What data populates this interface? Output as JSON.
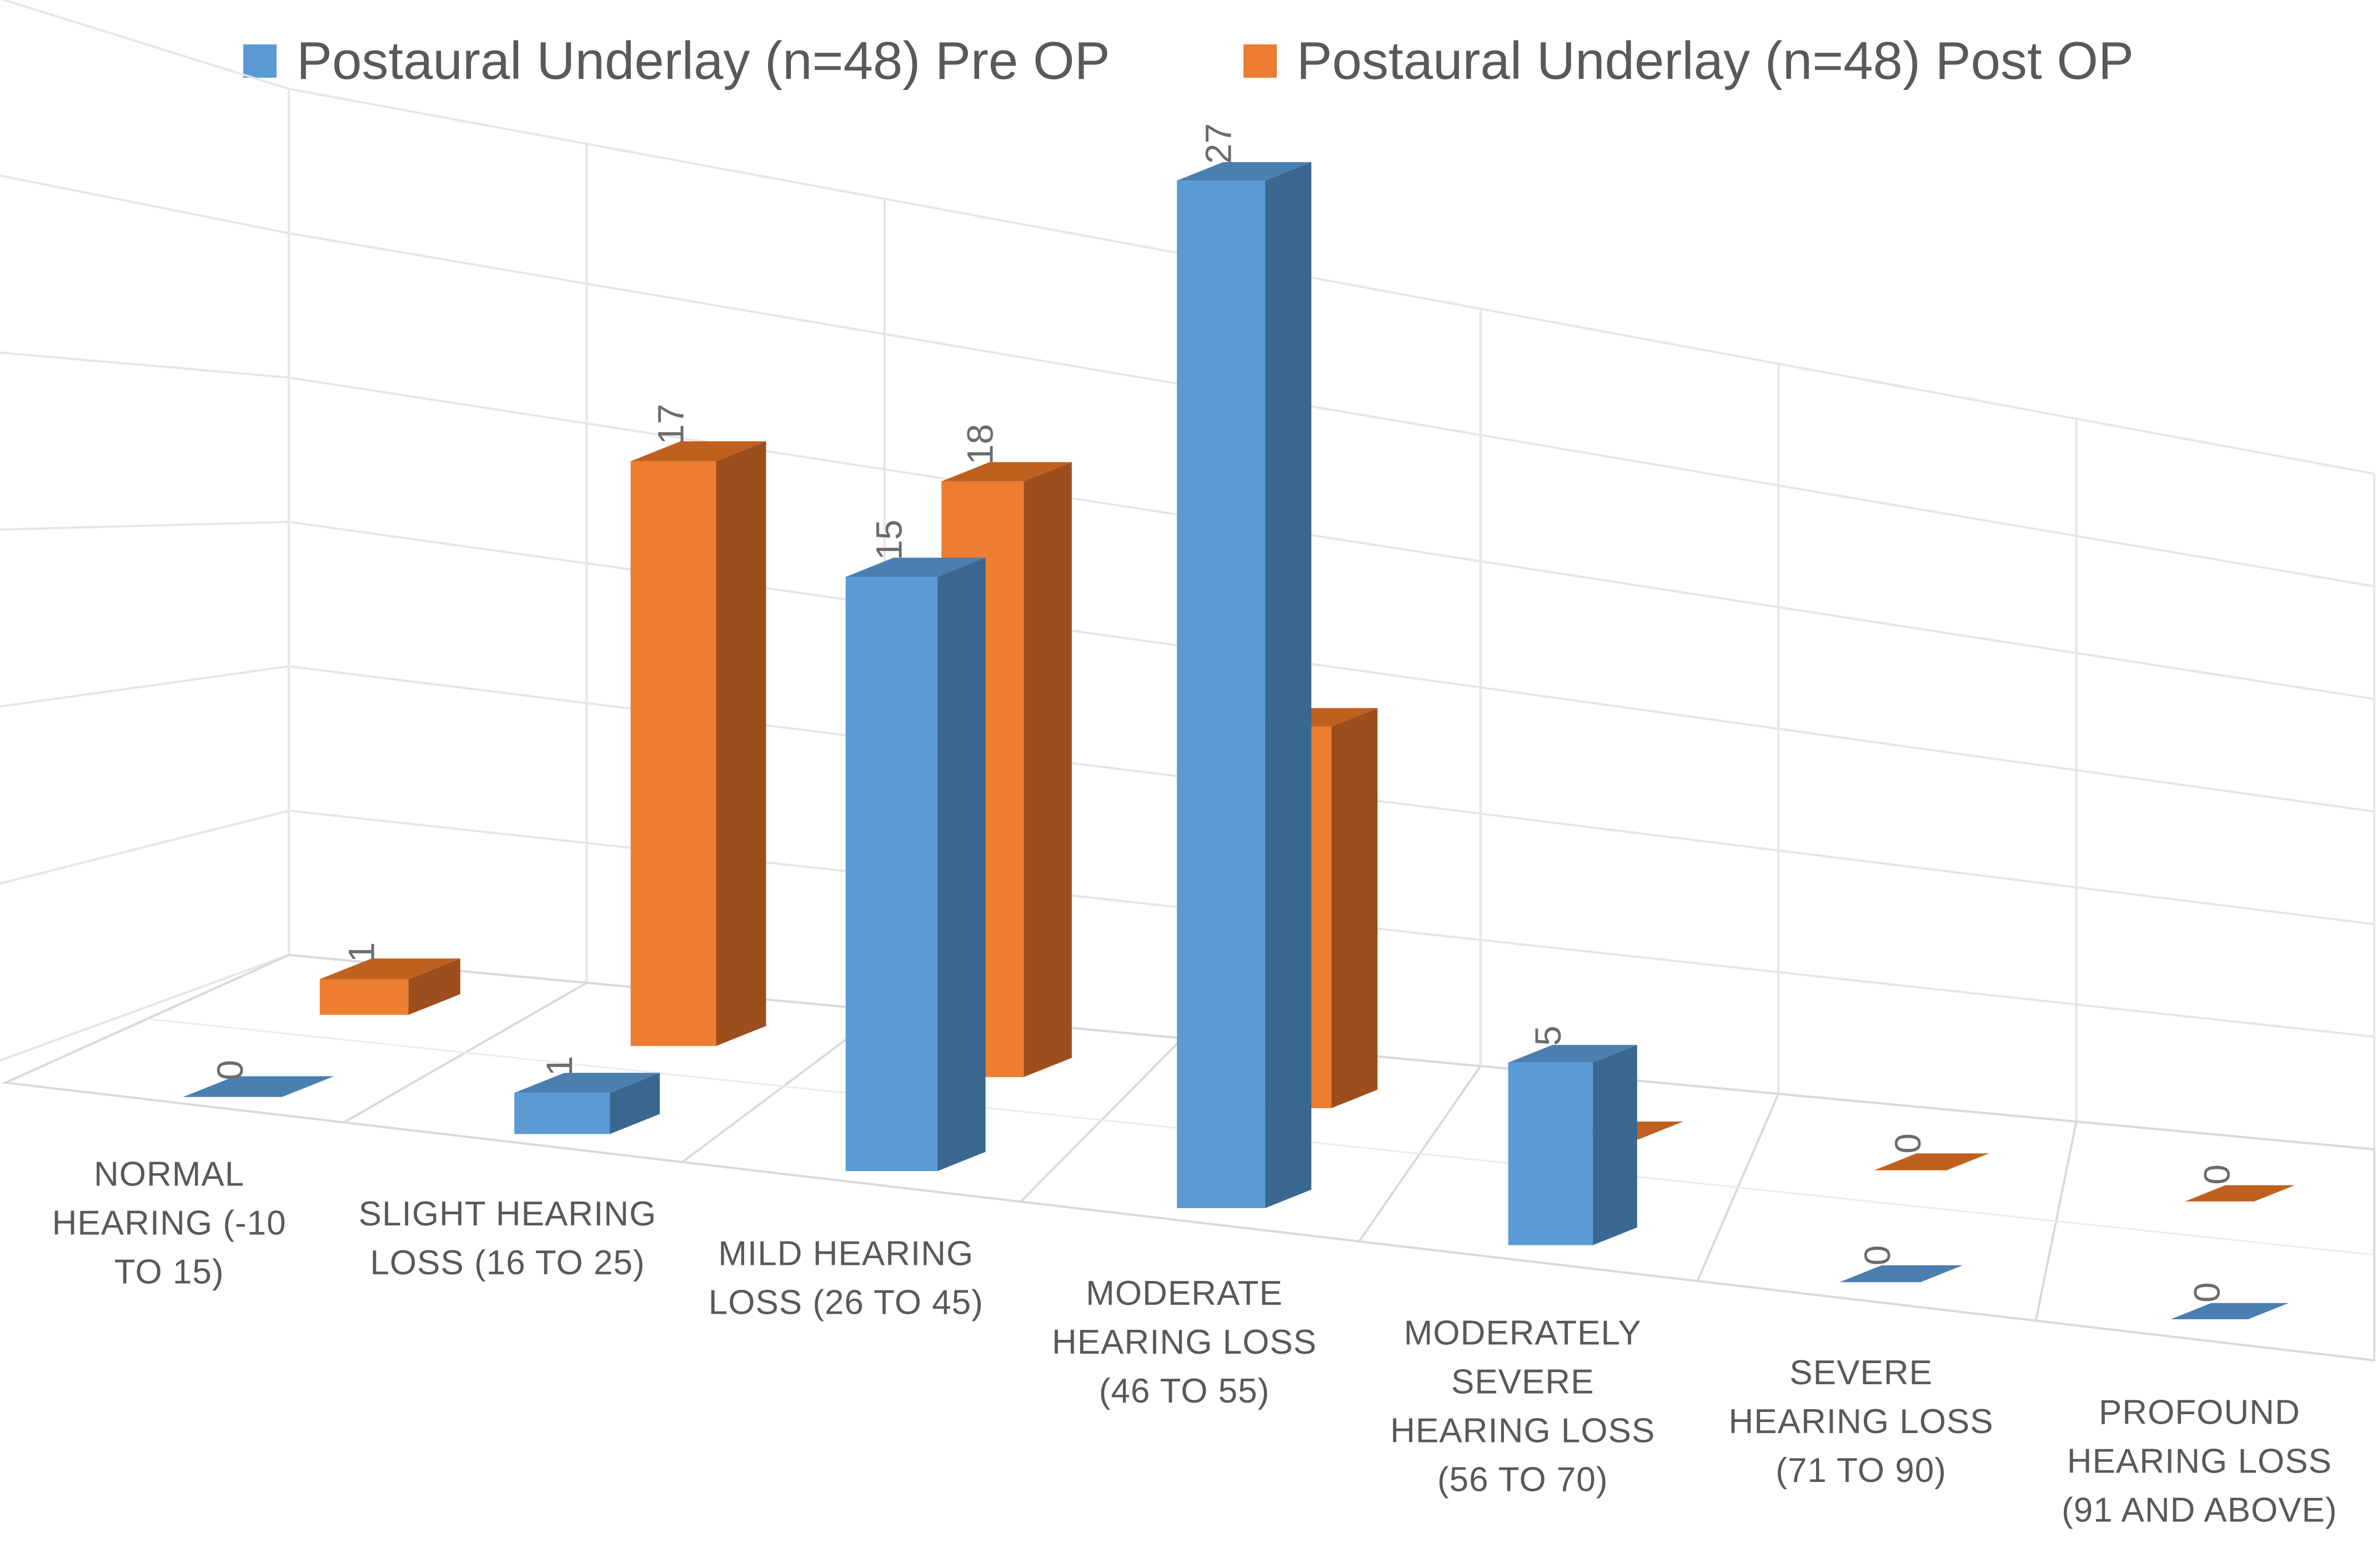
{
  "chart_data": {
    "type": "bar",
    "title": "",
    "xlabel": "",
    "ylabel": "",
    "ylim": [
      0,
      30
    ],
    "legend_position": "top",
    "grid": true,
    "categories": [
      "NORMAL HEARING (-10 TO 15)",
      "SLIGHT HEARING LOSS (16 TO 25)",
      "MILD HEARING LOSS (26 TO 45)",
      "MODERATE HEARING LOSS (46 TO 55)",
      "MODERATELY SEVERE HEARING LOSS (56 TO 70)",
      "SEVERE HEARING LOSS (71 TO 90)",
      "PROFOUND HEARING LOSS (91 AND ABOVE)"
    ],
    "category_lines": [
      [
        "NORMAL",
        "HEARING (-10",
        "TO 15)"
      ],
      [
        "SLIGHT HEARING",
        "LOSS (16 TO 25)"
      ],
      [
        "MILD HEARING",
        "LOSS (26 TO 45)"
      ],
      [
        "MODERATE",
        "HEARING LOSS",
        "(46 TO 55)"
      ],
      [
        "MODERATELY",
        "SEVERE",
        "HEARING LOSS",
        "(56 TO 70)"
      ],
      [
        "SEVERE",
        "HEARING LOSS",
        "(71 TO 90)"
      ],
      [
        "PROFOUND",
        "HEARING LOSS",
        "(91 AND ABOVE)"
      ]
    ],
    "series": [
      {
        "name": "Postaural Underlay (n=48) Pre OP",
        "color": "#5b9bd5",
        "side_color": "#3a6790",
        "top_color": "#4a7fb0",
        "values": [
          0,
          1,
          15,
          27,
          5,
          0,
          0
        ]
      },
      {
        "name": "Postaural Underlay (n=48) Post OP",
        "color": "#ed7d31",
        "side_color": "#9c4e1c",
        "top_color": "#c0601f",
        "values": [
          1,
          17,
          18,
          12,
          0,
          0,
          0
        ]
      }
    ]
  }
}
